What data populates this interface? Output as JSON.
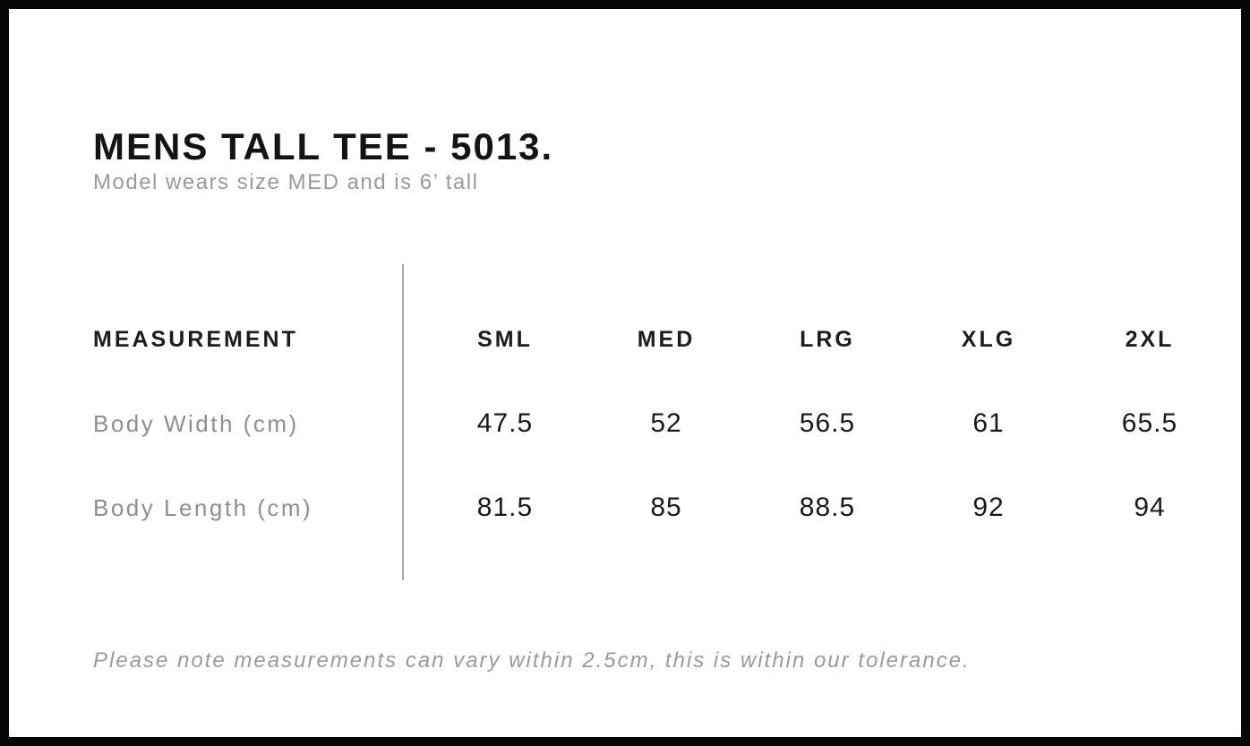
{
  "page": {
    "title": "MENS TALL TEE - 5013.",
    "subtitle": "Model wears size MED and is 6’ tall",
    "note": "Please note measurements can vary within 2.5cm, this is within our tolerance."
  },
  "size_chart": {
    "label_header": "MEASUREMENT",
    "size_headers": [
      "SML",
      "MED",
      "LRG",
      "XLG",
      "2XL"
    ],
    "rows": [
      {
        "label": "Body Width (cm)",
        "values": [
          "47.5",
          "52",
          "56.5",
          "61",
          "65.5"
        ]
      },
      {
        "label": "Body Length (cm)",
        "values": [
          "81.5",
          "85",
          "88.5",
          "92",
          "94"
        ]
      }
    ]
  },
  "colors": {
    "frame": "#060606",
    "heading_text": "#141414",
    "muted_text": "#9a9a9a",
    "value_text": "#1a1a1a",
    "divider": "#ababab"
  }
}
